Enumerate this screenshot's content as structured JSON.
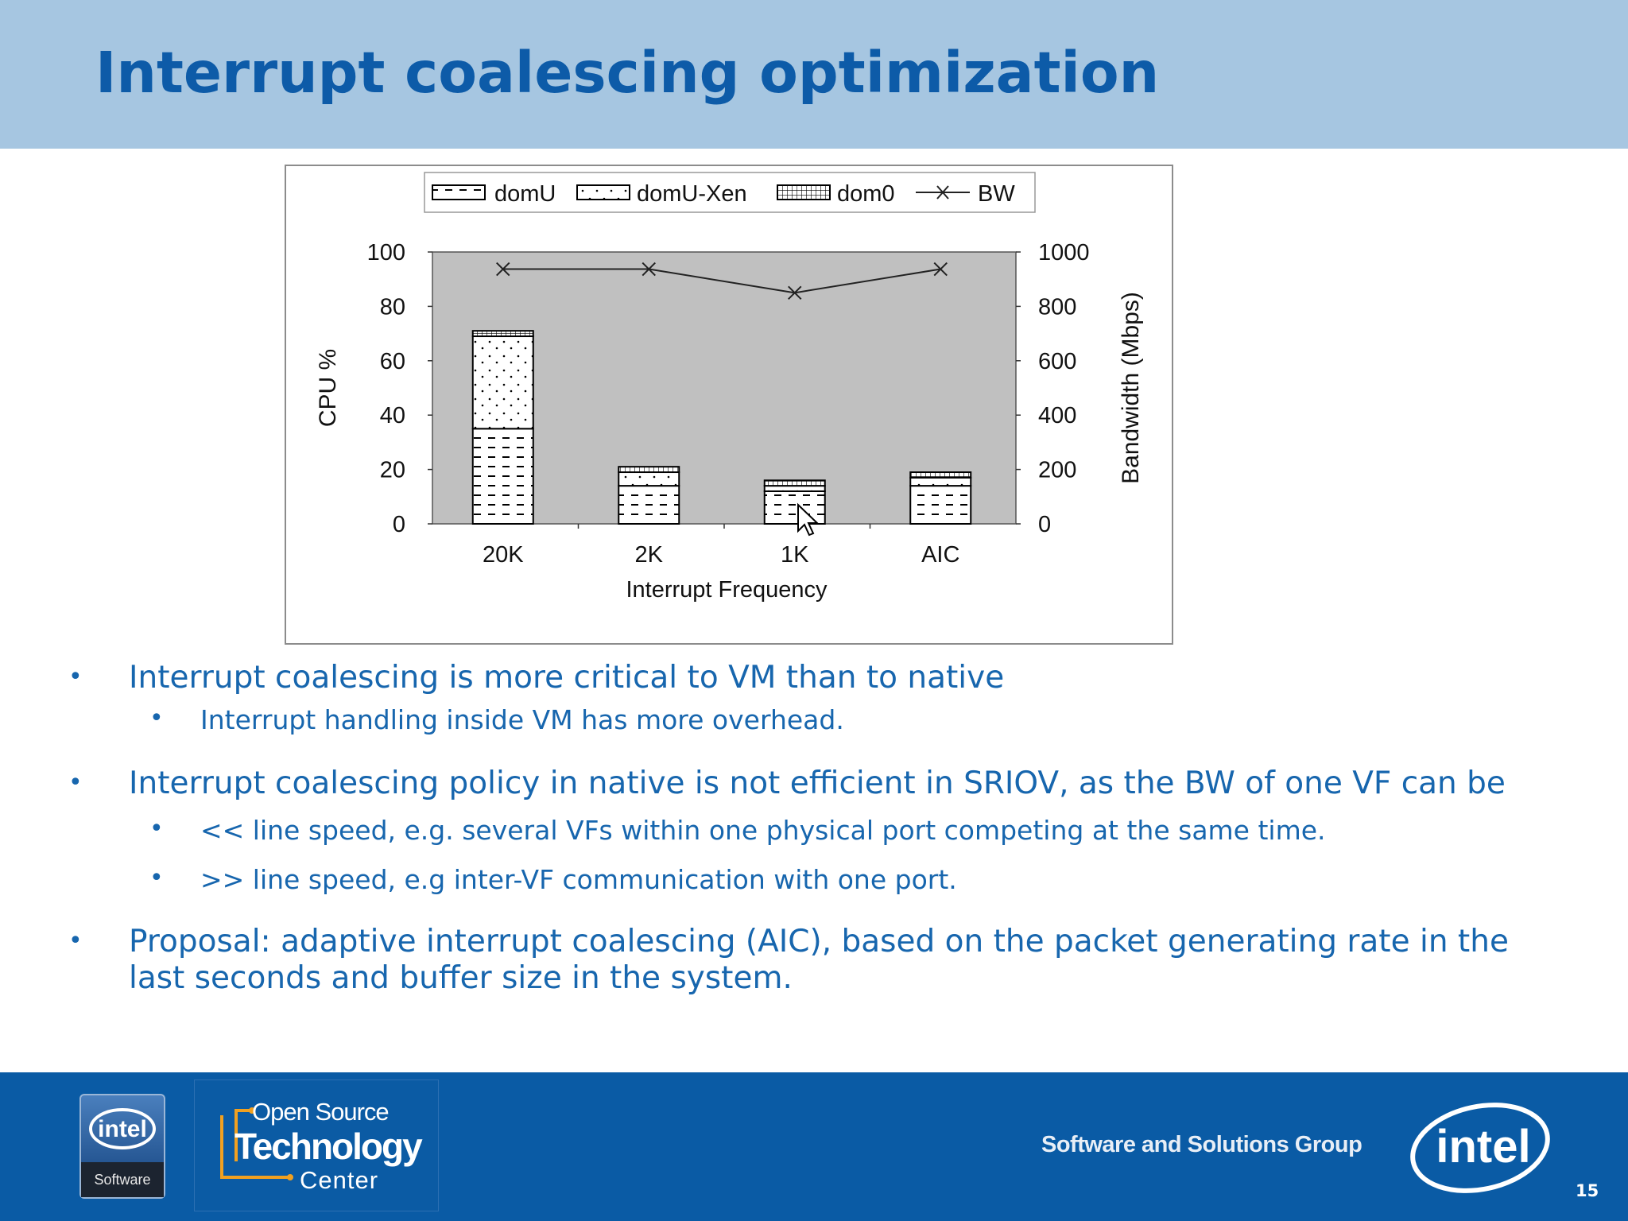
{
  "slide": {
    "title": "Interrupt coalescing optimization",
    "page_number": "15"
  },
  "bullets": [
    {
      "level": 1,
      "text": "Interrupt coalescing is more critical to VM than to native"
    },
    {
      "level": 2,
      "text": "Interrupt handling inside VM has more overhead."
    },
    {
      "level": 1,
      "text": "Interrupt coalescing policy in native is not efficient in SRIOV, as the BW of one VF can be"
    },
    {
      "level": 2,
      "text": "<< line speed, e.g. several VFs within one physical port competing at the same time."
    },
    {
      "level": 2,
      "text": ">> line speed, e.g inter-VF communication with one port."
    },
    {
      "level": 1,
      "text": "Proposal: adaptive interrupt coalescing (AIC), based on the packet generating rate in the"
    },
    {
      "level": 1,
      "text": "last seconds and buffer size in the system."
    }
  ],
  "footer": {
    "intel_software_badge": {
      "logo": "intel",
      "label": "Software"
    },
    "ost_line1": "Open Source",
    "ost_line2": "Technology",
    "ost_line3": "Center",
    "group": "Software and Solutions Group",
    "logo": "intel"
  },
  "chart_data": {
    "type": "bar",
    "stacked": true,
    "categories": [
      "20K",
      "2K",
      "1K",
      "AIC"
    ],
    "series": [
      {
        "name": "domU",
        "values": [
          35,
          14,
          12,
          14
        ],
        "pattern": "dashes"
      },
      {
        "name": "domU-Xen",
        "values": [
          34,
          5,
          2,
          3
        ],
        "pattern": "dots"
      },
      {
        "name": "dom0",
        "values": [
          2,
          2,
          2,
          2
        ],
        "pattern": "grid"
      }
    ],
    "line_series": {
      "name": "BW",
      "axis": "right",
      "values": [
        937,
        937,
        850,
        937
      ],
      "marker": "x"
    },
    "xlabel": "Interrupt Frequency",
    "ylabel": "CPU %",
    "y2label": "Bandwidth (Mbps)",
    "ylim": [
      0,
      100
    ],
    "y2lim": [
      0,
      1000
    ],
    "yticks": [
      "0",
      "20",
      "40",
      "60",
      "80",
      "100"
    ],
    "y2ticks": [
      "0",
      "200",
      "400",
      "600",
      "800",
      "1000"
    ],
    "legend": [
      "domU",
      "domU-Xen",
      "dom0",
      "BW"
    ],
    "legend_position": "top",
    "plot_background": "#c0c0c0"
  }
}
